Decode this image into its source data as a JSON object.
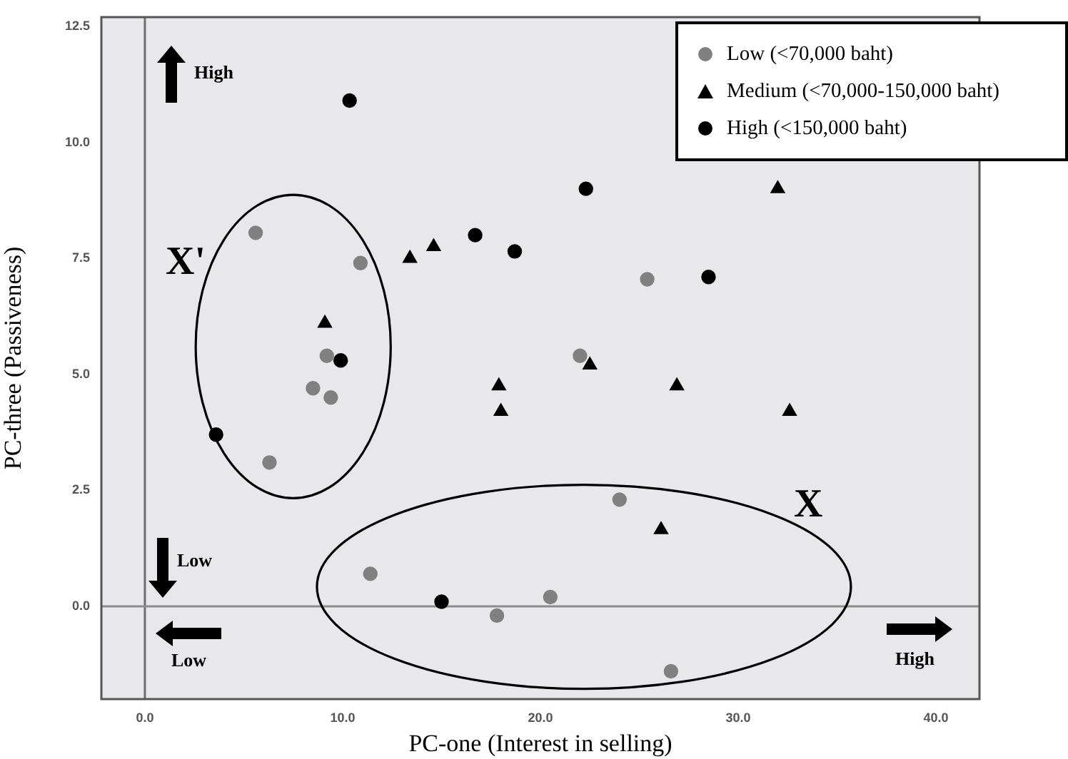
{
  "chart_data": {
    "type": "scatter",
    "xlabel": "PC-one (Interest in selling)",
    "ylabel": "PC-three (Passiveness)",
    "xlim": [
      -2.2,
      42.2
    ],
    "ylim": [
      -2.0,
      12.7
    ],
    "xticks": [
      {
        "value": 0,
        "label": "0.0"
      },
      {
        "value": 10,
        "label": "10.0"
      },
      {
        "value": 20,
        "label": "20.0"
      },
      {
        "value": 30,
        "label": "30.0"
      },
      {
        "value": 40,
        "label": "40.0"
      }
    ],
    "yticks": [
      {
        "value": 0,
        "label": "0.0"
      },
      {
        "value": 2.5,
        "label": "2.5"
      },
      {
        "value": 5,
        "label": "5.0"
      },
      {
        "value": 7.5,
        "label": "7.5"
      },
      {
        "value": 10,
        "label": "10.0"
      },
      {
        "value": 12.5,
        "label": "12.5"
      }
    ],
    "grid": false,
    "legend": "top right",
    "series": [
      {
        "name": "Low (<70,000 baht)",
        "color": "#808080",
        "marker": "circle",
        "x": [
          5.6,
          10.9,
          9.2,
          22.0,
          8.5,
          9.4,
          6.3,
          11.4,
          17.8,
          20.5,
          24.0,
          26.6,
          25.4
        ],
        "values": [
          8.05,
          7.4,
          5.4,
          5.4,
          4.7,
          4.5,
          3.1,
          0.7,
          -0.2,
          0.2,
          2.3,
          -1.4,
          7.05
        ]
      },
      {
        "name": "Medium (<70,000-150,000 baht)",
        "color": "#000000",
        "marker": "triangle",
        "x": [
          13.4,
          14.6,
          9.1,
          17.9,
          18.0,
          22.5,
          26.9,
          32.6,
          26.1,
          32.0
        ],
        "values": [
          7.5,
          7.75,
          6.1,
          4.75,
          4.2,
          5.2,
          4.75,
          4.2,
          1.65,
          9.0
        ]
      },
      {
        "name": "High (<150,000 baht)",
        "color": "#000000",
        "marker": "circle",
        "x": [
          10.35,
          22.3,
          16.7,
          18.7,
          9.9,
          3.6,
          15.0,
          28.5
        ],
        "values": [
          10.9,
          9.0,
          8.0,
          7.65,
          5.3,
          3.7,
          0.1,
          7.1
        ]
      }
    ],
    "ref_lines": [
      {
        "axis": "x",
        "value": 0,
        "color": "#6e6e6e"
      },
      {
        "axis": "y",
        "value": 0,
        "color": "#8c8c8c"
      }
    ],
    "annotations": [
      "High",
      "X'",
      "X",
      "Low",
      "Low",
      "High"
    ]
  }
}
